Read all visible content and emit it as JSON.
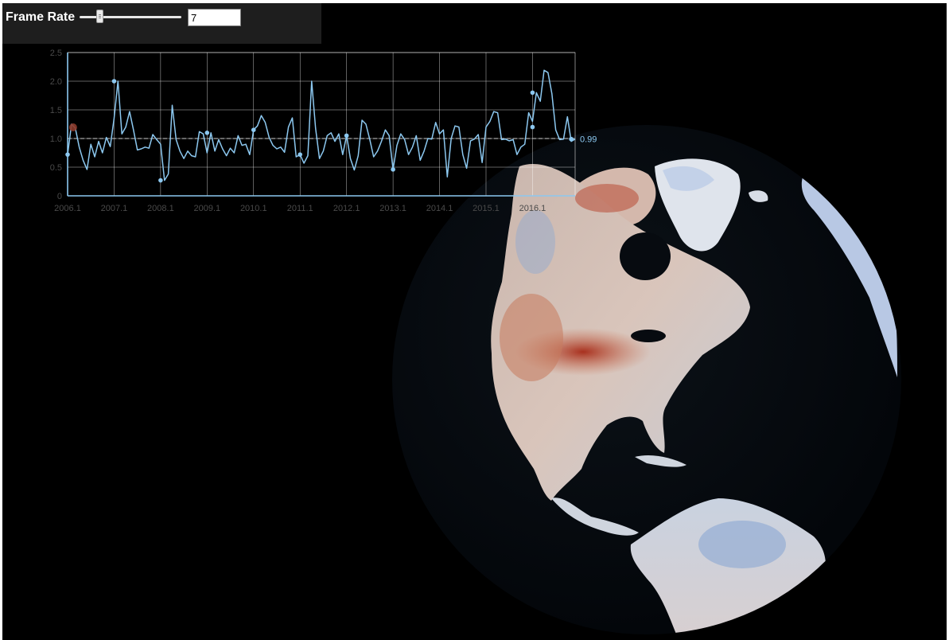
{
  "toolbar": {
    "label": "Frame Rate",
    "slider_value": 7,
    "slider_min": 1,
    "slider_max": 60,
    "input_value": "7"
  },
  "colors": {
    "background": "#000000",
    "toolbar_bg": "#1e1e1e",
    "series": "#8cc8f0",
    "grid": "#ffffff",
    "ocean": "#060a0e",
    "warm_anomaly": "#b8422c",
    "cool_anomaly": "#5a82c4",
    "marker": "#8c3a2a"
  },
  "chart_data": {
    "type": "line",
    "ylim": [
      0,
      2.5
    ],
    "yticks": [
      "0",
      "0.5",
      "1.0",
      "1.5",
      "2.0",
      "2.5"
    ],
    "xticks": [
      "2006.1",
      "2007.1",
      "2008.1",
      "2009.1",
      "2010.1",
      "2011.1",
      "2012.1",
      "2013.1",
      "2014.1",
      "2015.1",
      "2016.1"
    ],
    "reference_line": 1.0,
    "end_label": "0.99",
    "grid": true,
    "series": [
      {
        "start": "2006.1",
        "step": "monthly",
        "values": [
          0.72,
          1.25,
          1.18,
          0.85,
          0.62,
          0.46,
          0.9,
          0.68,
          0.95,
          0.75,
          1.02,
          0.86,
          1.35,
          2.0,
          1.08,
          1.2,
          1.47,
          1.15,
          0.8,
          0.82,
          0.85,
          0.83,
          1.07,
          0.98,
          0.9,
          0.27,
          0.38,
          1.58,
          0.98,
          0.78,
          0.65,
          0.78,
          0.7,
          0.68,
          1.12,
          1.08,
          0.75,
          1.1,
          0.78,
          0.98,
          0.82,
          0.7,
          0.83,
          0.75,
          1.05,
          0.88,
          0.9,
          0.72,
          1.15,
          1.22,
          1.4,
          1.28,
          1.02,
          0.88,
          0.82,
          0.85,
          0.76,
          1.2,
          1.36,
          0.68,
          0.72,
          0.57,
          0.7,
          2.0,
          1.18,
          0.65,
          0.78,
          1.05,
          1.1,
          0.95,
          1.08,
          0.72,
          1.05,
          0.65,
          0.45,
          0.7,
          1.32,
          1.25,
          0.98,
          0.68,
          0.78,
          0.95,
          1.15,
          1.05,
          0.46,
          0.88,
          1.08,
          0.98,
          0.72,
          0.85,
          1.05,
          0.62,
          0.78,
          1.0,
          0.99,
          1.28,
          1.08,
          1.15,
          0.33,
          1.0,
          1.22,
          1.2,
          0.72,
          0.48,
          0.96,
          0.99,
          1.07,
          0.58,
          1.2,
          1.3,
          1.47,
          1.45,
          0.98,
          0.99,
          0.96,
          0.98,
          0.72,
          0.85,
          0.9,
          1.45,
          1.3,
          1.8,
          1.65,
          2.19,
          2.15,
          1.78,
          1.15,
          0.98,
          0.99,
          1.38,
          0.95,
          0.99
        ]
      }
    ],
    "marked_points": [
      {
        "x": "2006.1",
        "y": 0.72
      },
      {
        "x": "2007.1",
        "y": 2.0
      },
      {
        "x": "2008.1",
        "y": 0.27
      },
      {
        "x": "2009.1",
        "y": 1.1
      },
      {
        "x": "2010.1",
        "y": 1.15
      },
      {
        "x": "2011.1",
        "y": 0.72
      },
      {
        "x": "2012.1",
        "y": 1.05
      },
      {
        "x": "2013.1",
        "y": 0.46
      },
      {
        "x": "2016.1",
        "y": 1.2
      },
      {
        "x": "2016.1",
        "y": 1.8
      },
      {
        "x": "2016.11",
        "y": 0.99
      }
    ],
    "current_marker": {
      "x": "2006.2",
      "y": 1.25
    }
  }
}
